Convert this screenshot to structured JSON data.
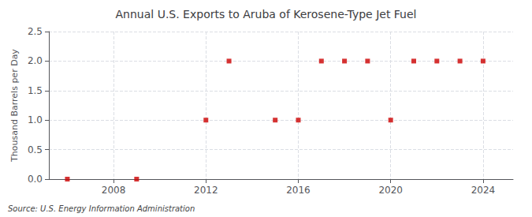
{
  "chart_data": {
    "type": "scatter",
    "title": "Annual U.S. Exports to Aruba of Kerosene-Type Jet Fuel",
    "ylabel": "Thousand Barrels per Day",
    "source": "Source: U.S. Energy Information Administration",
    "x": [
      2006,
      2009,
      2012,
      2013,
      2015,
      2016,
      2017,
      2018,
      2019,
      2020,
      2021,
      2022,
      2023,
      2024
    ],
    "values": [
      0,
      0,
      1,
      2,
      1,
      1,
      2,
      2,
      2,
      1,
      2,
      2,
      2,
      2
    ],
    "color": "#cc0000",
    "marker": "square",
    "xlim": [
      2005.2,
      2025.3
    ],
    "xticks": [
      2008,
      2012,
      2016,
      2020,
      2024
    ],
    "ylim": [
      0,
      2.5
    ],
    "yticks": [
      {
        "value": 0.0,
        "label": "0.0"
      },
      0.5,
      {
        "value": 1.0,
        "label": "1.0"
      },
      1.5,
      {
        "value": 2.0,
        "label": "2.0"
      },
      2.5
    ],
    "grid": true
  }
}
